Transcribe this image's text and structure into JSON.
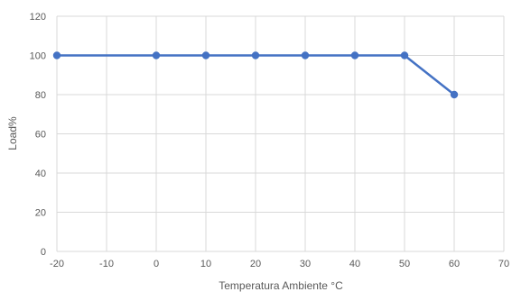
{
  "chart_data": {
    "type": "line",
    "title": "",
    "xlabel": "Temperatura Ambiente °C",
    "ylabel": "Load%",
    "xlim": [
      -20,
      70
    ],
    "ylim": [
      0,
      120
    ],
    "xticks": [
      -20,
      -10,
      0,
      10,
      20,
      30,
      40,
      50,
      60,
      70
    ],
    "yticks": [
      0,
      20,
      40,
      60,
      80,
      100,
      120
    ],
    "grid": true,
    "legend": "none",
    "series": [
      {
        "color": "#4472C4",
        "x": [
          -20,
          0,
          10,
          20,
          30,
          40,
          50,
          60
        ],
        "y": [
          100,
          100,
          100,
          100,
          100,
          100,
          100,
          80
        ]
      }
    ]
  }
}
